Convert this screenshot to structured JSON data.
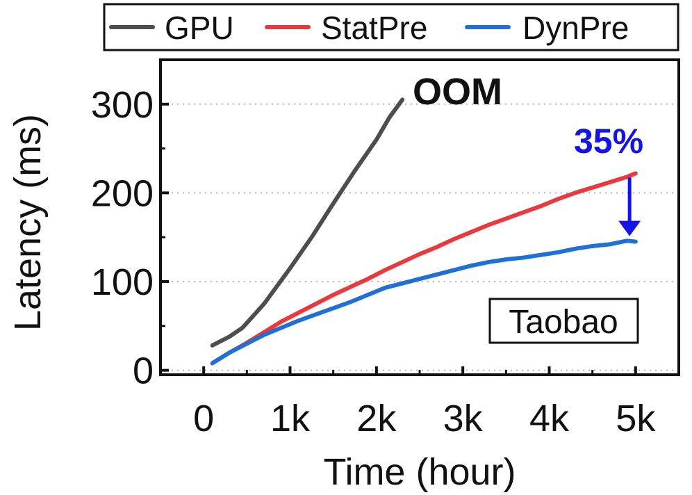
{
  "chart_data": {
    "type": "line",
    "title": "",
    "xlabel": "Time (hour)",
    "ylabel": "Latency (ms)",
    "xlim": [
      -500,
      5500
    ],
    "ylim": [
      -5,
      350
    ],
    "x_ticks": [
      {
        "value": 0,
        "label": "0"
      },
      {
        "value": 1000,
        "label": "1k"
      },
      {
        "value": 2000,
        "label": "2k"
      },
      {
        "value": 3000,
        "label": "3k"
      },
      {
        "value": 4000,
        "label": "4k"
      },
      {
        "value": 5000,
        "label": "5k"
      }
    ],
    "y_ticks": [
      {
        "value": 0,
        "label": "0"
      },
      {
        "value": 100,
        "label": "100"
      },
      {
        "value": 200,
        "label": "200"
      },
      {
        "value": 300,
        "label": "300"
      }
    ],
    "grid": "horizontal dotted",
    "legend_position": "top",
    "series": [
      {
        "name": "GPU",
        "color": "#4d4d4d",
        "x": [
          100,
          300,
          450,
          700,
          1000,
          1250,
          1500,
          1750,
          2000,
          2150,
          2300
        ],
        "y": [
          28,
          38,
          48,
          75,
          115,
          150,
          188,
          225,
          260,
          285,
          305
        ]
      },
      {
        "name": "StatPre",
        "color": "#e8393e",
        "x": [
          100,
          300,
          500,
          700,
          900,
          1100,
          1300,
          1500,
          1700,
          1900,
          2100,
          2300,
          2500,
          2700,
          2900,
          3100,
          3300,
          3500,
          3700,
          3900,
          4100,
          4300,
          4500,
          4700,
          4900,
          5000
        ],
        "y": [
          8,
          20,
          31,
          43,
          55,
          65,
          75,
          85,
          94,
          103,
          113,
          122,
          131,
          139,
          148,
          156,
          164,
          171,
          178,
          185,
          193,
          200,
          206,
          212,
          218,
          222
        ]
      },
      {
        "name": "DynPre",
        "color": "#1f6fd6",
        "x": [
          100,
          300,
          500,
          700,
          900,
          1100,
          1300,
          1500,
          1700,
          1900,
          2100,
          2300,
          2500,
          2700,
          2900,
          3100,
          3300,
          3500,
          3700,
          3900,
          4100,
          4300,
          4500,
          4700,
          4900,
          5000
        ],
        "y": [
          8,
          20,
          30,
          40,
          48,
          56,
          63,
          70,
          77,
          85,
          93,
          98,
          103,
          108,
          113,
          118,
          122,
          125,
          127,
          130,
          133,
          137,
          140,
          142,
          146,
          145
        ]
      }
    ],
    "annotations": [
      {
        "text": "OOM",
        "x": 2350,
        "y": 310,
        "color": "#111111"
      },
      {
        "text": "35%",
        "x": 4700,
        "y": 258,
        "color": "#1414e6"
      }
    ],
    "inset_label": "Taobao"
  }
}
